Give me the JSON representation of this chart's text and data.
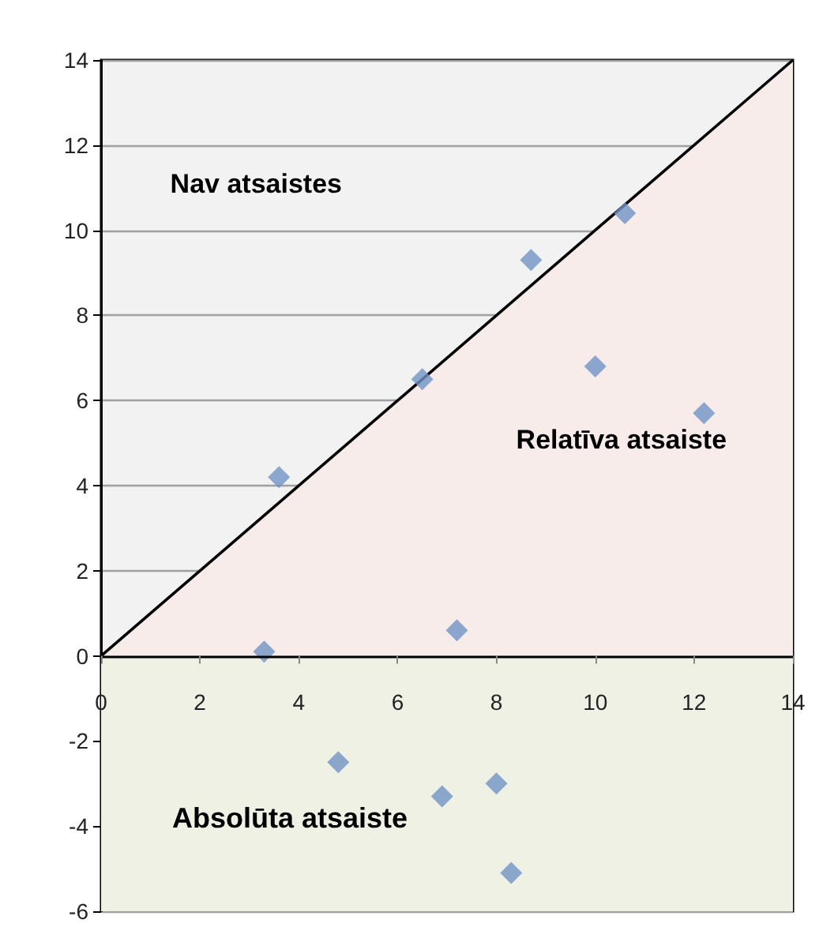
{
  "chart_data": {
    "type": "scatter",
    "series": [
      {
        "type": "scatter",
        "color": "#7094c4",
        "marker": "diamond",
        "x": [
          3.6,
          3.3,
          6.5,
          7.2,
          8.7,
          10.6,
          10.0,
          12.2,
          4.8,
          6.9,
          8.0,
          8.3
        ],
        "values": [
          4.2,
          0.1,
          6.5,
          0.6,
          9.3,
          10.4,
          6.8,
          5.7,
          -2.5,
          -3.3,
          -3.0,
          -5.1
        ]
      },
      {
        "type": "line",
        "color": "#000000",
        "marker": "none",
        "x": [
          0,
          14
        ],
        "values": [
          0,
          14
        ]
      }
    ],
    "bands": [
      {
        "axis": "y",
        "from": -6,
        "to": 0,
        "label": "Absolūta atsaiste",
        "color": "#eef1e4"
      }
    ],
    "annotations": [
      "Nav atsaistes",
      "Relatīva atsaiste"
    ],
    "xlim": [
      0,
      14
    ],
    "xticks": [
      0,
      2,
      4,
      6,
      8,
      10,
      12,
      14
    ],
    "ylim": [
      -6,
      14
    ],
    "yticks": [
      -6,
      -4,
      -2,
      0,
      2,
      4,
      6,
      8,
      10,
      12,
      14
    ],
    "grid": "y"
  }
}
